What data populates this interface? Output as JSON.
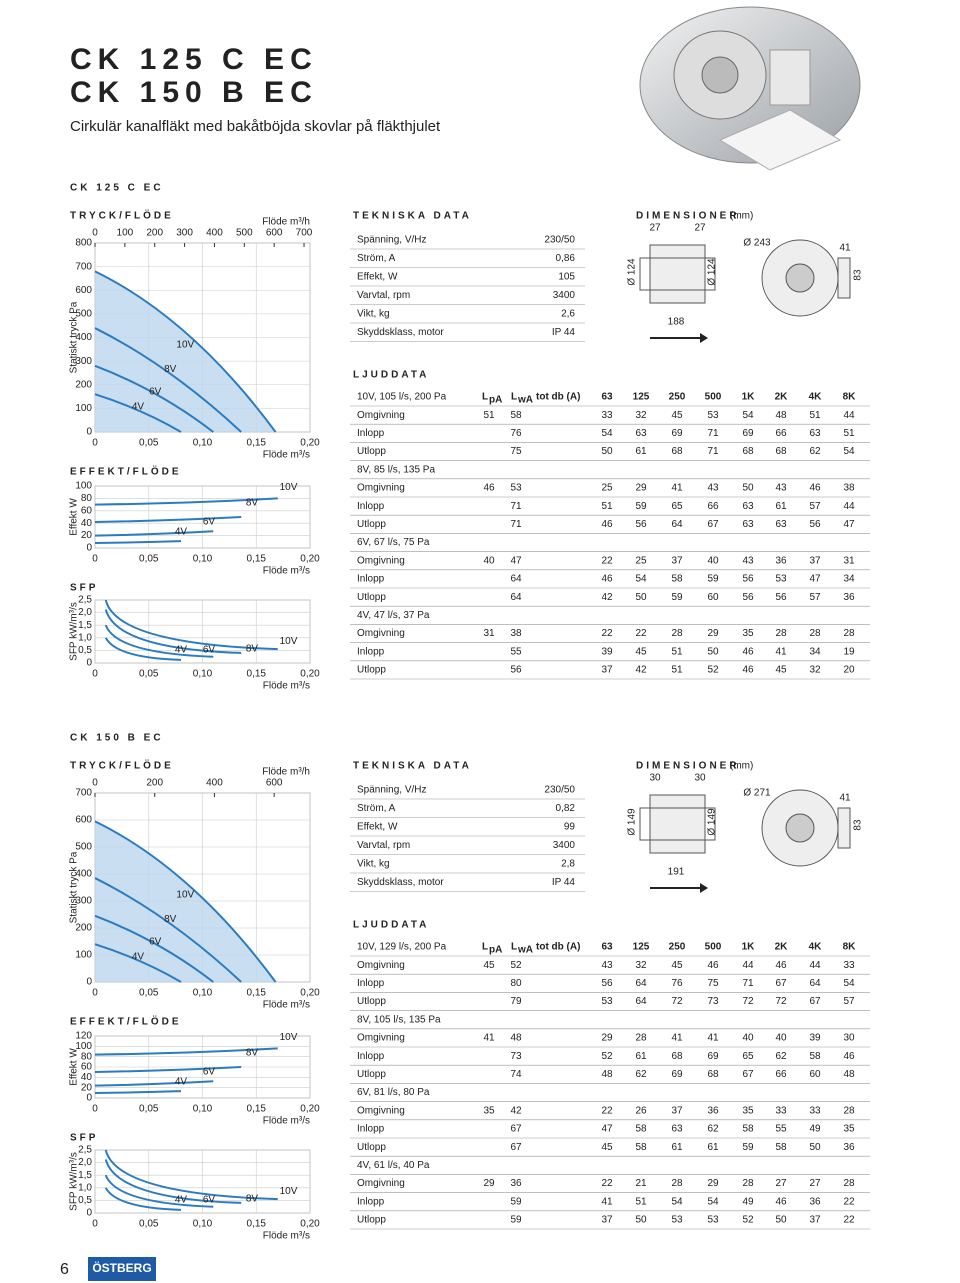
{
  "header": {
    "title_lines": [
      "CK 125 C EC",
      "CK 150 B EC"
    ],
    "subtitle": "Cirkulär kanalfläkt med bakåtböjda skovlar på fläkthjulet"
  },
  "sections": [
    {
      "heading": "CK 125 C EC",
      "pressure_chart": {
        "title": "TRYCK/FLÖDE",
        "y_label": "Statiskt tryck Pa",
        "top_unit": "Flöde m³/h",
        "top_ticks": [
          0,
          100,
          200,
          300,
          400,
          500,
          600,
          700
        ],
        "y_ticks": [
          800,
          700,
          600,
          500,
          400,
          300,
          200,
          100,
          0
        ],
        "x_ticks": [
          "0",
          "0,05",
          "0,10",
          "0,15",
          "0,20"
        ],
        "x_unit": "Flöde m³/s",
        "curve_labels": [
          "10V",
          "8V",
          "6V",
          "4V"
        ]
      },
      "power_chart": {
        "title": "EFFEKT/FLÖDE",
        "y_label": "Effekt W",
        "y_ticks": [
          100,
          80,
          60,
          40,
          20,
          0
        ],
        "x_ticks": [
          "0",
          "0,05",
          "0,10",
          "0,15",
          "0,20"
        ],
        "x_unit": "Flöde m³/s",
        "curve_labels": [
          "10V",
          "8V",
          "6V",
          "4V"
        ]
      },
      "sfp_chart": {
        "title": "SFP",
        "y_label": "SFP kW/m³/s",
        "y_ticks": [
          "2,5",
          "2,0",
          "1,5",
          "1,0",
          "0,5",
          "0"
        ],
        "x_ticks": [
          "0",
          "0,05",
          "0,10",
          "0,15",
          "0,20"
        ],
        "x_unit": "Flöde m³/s",
        "curve_labels": [
          "10V",
          "8V",
          "6V",
          "4V"
        ]
      },
      "technical": {
        "title": "TEKNISKA DATA",
        "rows": [
          [
            "Spänning, V/Hz",
            "230/50"
          ],
          [
            "Ström, A",
            "0,86"
          ],
          [
            "Effekt, W",
            "105"
          ],
          [
            "Varvtal, rpm",
            "3400"
          ],
          [
            "Vikt, kg",
            "2,6"
          ],
          [
            "Skyddsklass, motor",
            "IP 44"
          ]
        ]
      },
      "dimensions": {
        "title": "DIMENSIONER",
        "unit": "(mm)",
        "labels": [
          "27",
          "27",
          "Ø 243",
          "41",
          "Ø 124",
          "Ø 124",
          "83",
          "188"
        ]
      },
      "sound": {
        "title": "LJUDDATA",
        "lpa": [
          "L",
          "pA"
        ],
        "lwa": [
          "L",
          "wA",
          "tot db (A)"
        ],
        "bands": [
          "63",
          "125",
          "250",
          "500",
          "1K",
          "2K",
          "4K",
          "8K"
        ],
        "groups": [
          {
            "condition": "10V, 105 l/s, 200 Pa",
            "rows": [
              {
                "label": "Omgivning",
                "lpa": "51",
                "lwa": "58",
                "values": [
                  "33",
                  "32",
                  "45",
                  "53",
                  "54",
                  "48",
                  "51",
                  "44"
                ]
              },
              {
                "label": "Inlopp",
                "lwa": "76",
                "values": [
                  "54",
                  "63",
                  "69",
                  "71",
                  "69",
                  "66",
                  "63",
                  "51"
                ]
              },
              {
                "label": "Utlopp",
                "lwa": "75",
                "values": [
                  "50",
                  "61",
                  "68",
                  "71",
                  "68",
                  "68",
                  "62",
                  "54"
                ]
              }
            ]
          },
          {
            "condition": "8V, 85 l/s, 135 Pa",
            "rows": [
              {
                "label": "Omgivning",
                "lpa": "46",
                "lwa": "53",
                "values": [
                  "25",
                  "29",
                  "41",
                  "43",
                  "50",
                  "43",
                  "46",
                  "38"
                ]
              },
              {
                "label": "Inlopp",
                "lwa": "71",
                "values": [
                  "51",
                  "59",
                  "65",
                  "66",
                  "63",
                  "61",
                  "57",
                  "44"
                ]
              },
              {
                "label": "Utlopp",
                "lwa": "71",
                "values": [
                  "46",
                  "56",
                  "64",
                  "67",
                  "63",
                  "63",
                  "56",
                  "47"
                ]
              }
            ]
          },
          {
            "condition": "6V, 67 l/s, 75 Pa",
            "rows": [
              {
                "label": "Omgivning",
                "lpa": "40",
                "lwa": "47",
                "values": [
                  "22",
                  "25",
                  "37",
                  "40",
                  "43",
                  "36",
                  "37",
                  "31"
                ]
              },
              {
                "label": "Inlopp",
                "lwa": "64",
                "values": [
                  "46",
                  "54",
                  "58",
                  "59",
                  "56",
                  "53",
                  "47",
                  "34"
                ]
              },
              {
                "label": "Utlopp",
                "lwa": "64",
                "values": [
                  "42",
                  "50",
                  "59",
                  "60",
                  "56",
                  "56",
                  "57",
                  "36"
                ]
              }
            ]
          },
          {
            "condition": "4V, 47 l/s, 37 Pa",
            "rows": [
              {
                "label": "Omgivning",
                "lpa": "31",
                "lwa": "38",
                "values": [
                  "22",
                  "22",
                  "28",
                  "29",
                  "35",
                  "28",
                  "28",
                  "28"
                ]
              },
              {
                "label": "Inlopp",
                "lwa": "55",
                "values": [
                  "39",
                  "45",
                  "51",
                  "50",
                  "46",
                  "41",
                  "34",
                  "19"
                ]
              },
              {
                "label": "Utlopp",
                "lwa": "56",
                "values": [
                  "37",
                  "42",
                  "51",
                  "52",
                  "46",
                  "45",
                  "32",
                  "20"
                ]
              }
            ]
          }
        ]
      }
    },
    {
      "heading": "CK 150 B EC",
      "pressure_chart": {
        "title": "TRYCK/FLÖDE",
        "y_label": "Statiskt tryck Pa",
        "top_unit": "Flöde m³/h",
        "top_ticks": [
          0,
          200,
          400,
          600
        ],
        "y_ticks": [
          700,
          600,
          500,
          400,
          300,
          200,
          100,
          0
        ],
        "x_ticks": [
          "0",
          "0,05",
          "0,10",
          "0,15",
          "0,20"
        ],
        "x_unit": "Flöde m³/s",
        "curve_labels": [
          "10V",
          "8V",
          "6V",
          "4V"
        ]
      },
      "power_chart": {
        "title": "EFFEKT/FLÖDE",
        "y_label": "Effekt W",
        "y_ticks": [
          120,
          100,
          80,
          60,
          40,
          20,
          0
        ],
        "x_ticks": [
          "0",
          "0,05",
          "0,10",
          "0,15",
          "0,20"
        ],
        "x_unit": "Flöde m³/s",
        "curve_labels": [
          "10V",
          "8V",
          "6V",
          "4V"
        ]
      },
      "sfp_chart": {
        "title": "SFP",
        "y_label": "SFP kW/m³/s",
        "y_ticks": [
          "2,5",
          "2,0",
          "1,5",
          "1,0",
          "0,5",
          "0"
        ],
        "x_ticks": [
          "0",
          "0,05",
          "0,10",
          "0,15",
          "0,20"
        ],
        "x_unit": "Flöde m³/s",
        "curve_labels": [
          "10V",
          "8V",
          "6V",
          "4V"
        ]
      },
      "technical": {
        "title": "TEKNISKA DATA",
        "rows": [
          [
            "Spänning, V/Hz",
            "230/50"
          ],
          [
            "Ström, A",
            "0,82"
          ],
          [
            "Effekt, W",
            "99"
          ],
          [
            "Varvtal, rpm",
            "3400"
          ],
          [
            "Vikt, kg",
            "2,8"
          ],
          [
            "Skyddsklass, motor",
            "IP 44"
          ]
        ]
      },
      "dimensions": {
        "title": "DIMENSIONER",
        "unit": "(mm)",
        "labels": [
          "30",
          "30",
          "Ø 271",
          "41",
          "Ø 149",
          "Ø 149",
          "83",
          "191"
        ]
      },
      "sound": {
        "title": "LJUDDATA",
        "lpa": [
          "L",
          "pA"
        ],
        "lwa": [
          "L",
          "wA",
          "tot db (A)"
        ],
        "bands": [
          "63",
          "125",
          "250",
          "500",
          "1K",
          "2K",
          "4K",
          "8K"
        ],
        "groups": [
          {
            "condition": "10V, 129 l/s, 200 Pa",
            "rows": [
              {
                "label": "Omgivning",
                "lpa": "45",
                "lwa": "52",
                "values": [
                  "43",
                  "32",
                  "45",
                  "46",
                  "44",
                  "46",
                  "44",
                  "33"
                ]
              },
              {
                "label": "Inlopp",
                "lwa": "80",
                "values": [
                  "56",
                  "64",
                  "76",
                  "75",
                  "71",
                  "67",
                  "64",
                  "54"
                ]
              },
              {
                "label": "Utlopp",
                "lwa": "79",
                "values": [
                  "53",
                  "64",
                  "72",
                  "73",
                  "72",
                  "72",
                  "67",
                  "57"
                ]
              }
            ]
          },
          {
            "condition": "8V, 105 l/s, 135 Pa",
            "rows": [
              {
                "label": "Omgivning",
                "lpa": "41",
                "lwa": "48",
                "values": [
                  "29",
                  "28",
                  "41",
                  "41",
                  "40",
                  "40",
                  "39",
                  "30"
                ]
              },
              {
                "label": "Inlopp",
                "lwa": "73",
                "values": [
                  "52",
                  "61",
                  "68",
                  "69",
                  "65",
                  "62",
                  "58",
                  "46"
                ]
              },
              {
                "label": "Utlopp",
                "lwa": "74",
                "values": [
                  "48",
                  "62",
                  "69",
                  "68",
                  "67",
                  "66",
                  "60",
                  "48"
                ]
              }
            ]
          },
          {
            "condition": "6V, 81 l/s, 80 Pa",
            "rows": [
              {
                "label": "Omgivning",
                "lpa": "35",
                "lwa": "42",
                "values": [
                  "22",
                  "26",
                  "37",
                  "36",
                  "35",
                  "33",
                  "33",
                  "28"
                ]
              },
              {
                "label": "Inlopp",
                "lwa": "67",
                "values": [
                  "47",
                  "58",
                  "63",
                  "62",
                  "58",
                  "55",
                  "49",
                  "35"
                ]
              },
              {
                "label": "Utlopp",
                "lwa": "67",
                "values": [
                  "45",
                  "58",
                  "61",
                  "61",
                  "59",
                  "58",
                  "50",
                  "36"
                ]
              }
            ]
          },
          {
            "condition": "4V, 61 l/s, 40 Pa",
            "rows": [
              {
                "label": "Omgivning",
                "lpa": "29",
                "lwa": "36",
                "values": [
                  "22",
                  "21",
                  "28",
                  "29",
                  "28",
                  "27",
                  "27",
                  "28"
                ]
              },
              {
                "label": "Inlopp",
                "lwa": "59",
                "values": [
                  "41",
                  "51",
                  "54",
                  "54",
                  "49",
                  "46",
                  "36",
                  "22"
                ]
              },
              {
                "label": "Utlopp",
                "lwa": "59",
                "values": [
                  "37",
                  "50",
                  "53",
                  "53",
                  "52",
                  "50",
                  "37",
                  "22"
                ]
              }
            ]
          }
        ]
      }
    }
  ],
  "footer": {
    "page_number": "6",
    "logo": "ÖSTBERG"
  }
}
